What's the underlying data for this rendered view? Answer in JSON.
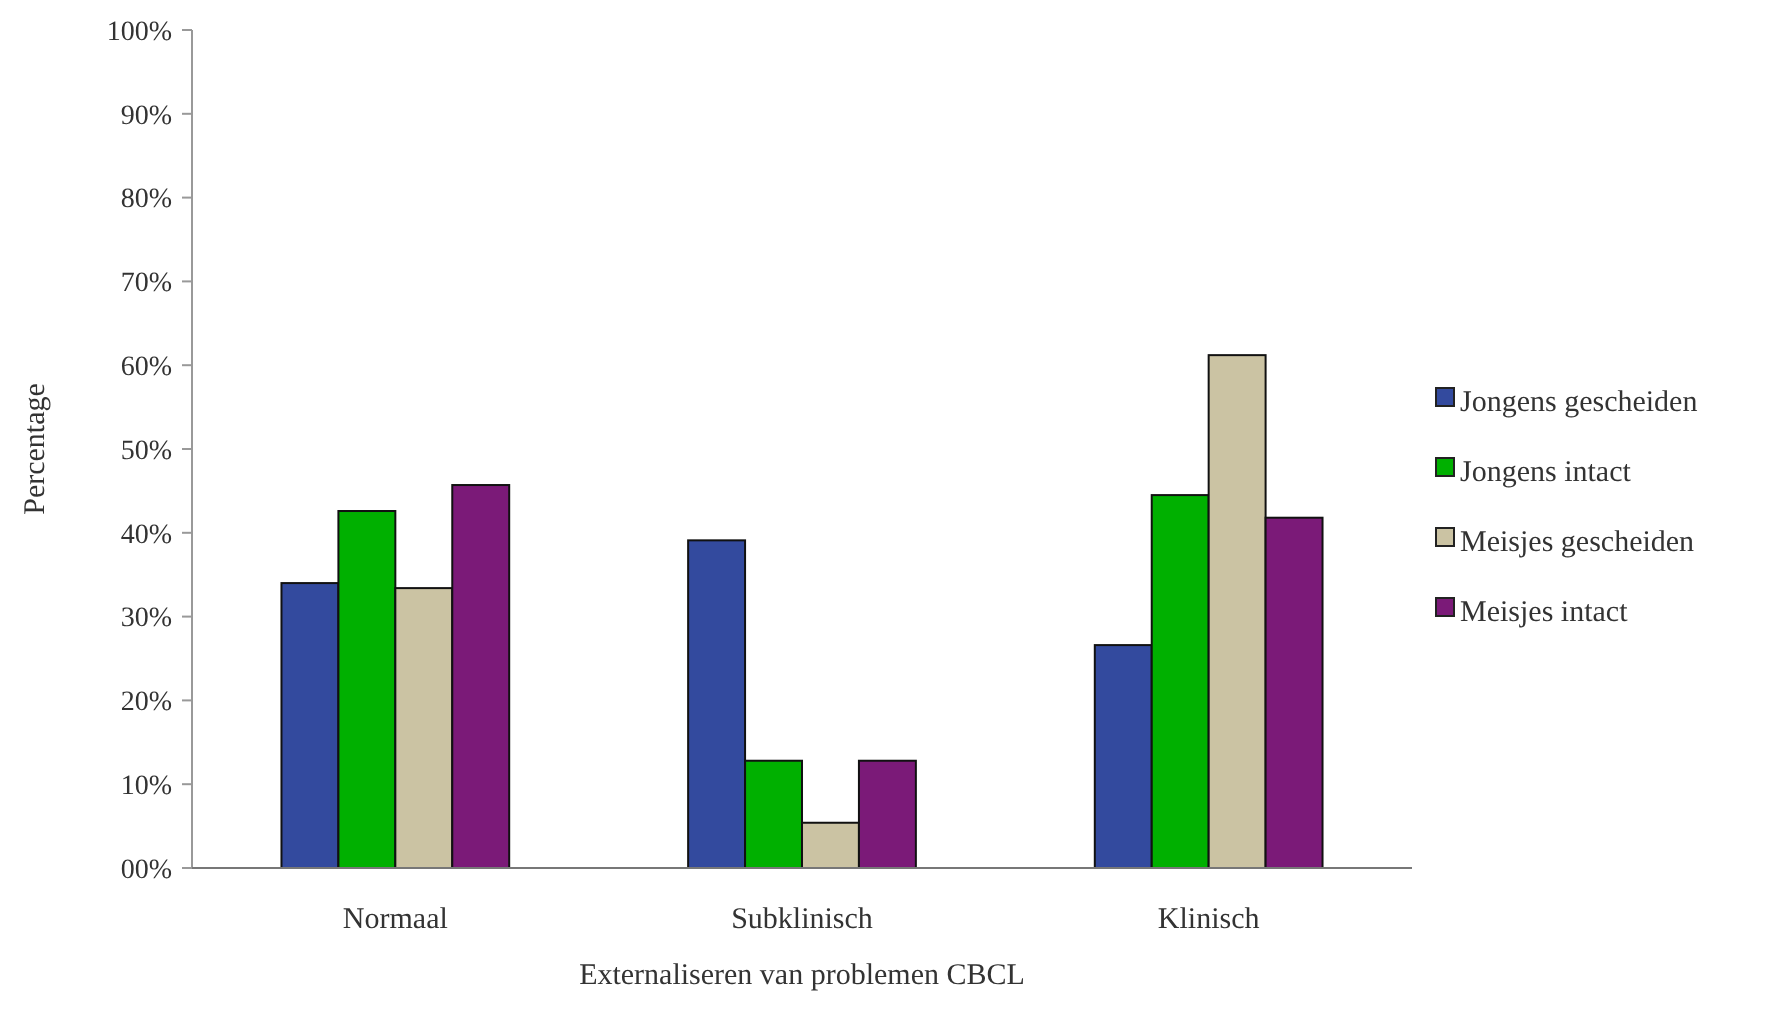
{
  "chart_data": {
    "type": "bar",
    "xlabel": "Externaliseren van problemen CBCL",
    "ylabel": "Percentage",
    "categories": [
      "Normaal",
      "Subklinisch",
      "Klinisch"
    ],
    "series": [
      {
        "name": "Jongens gescheiden",
        "color": "#334a9e",
        "values": [
          34,
          39.1,
          26.6
        ]
      },
      {
        "name": "Jongens intact",
        "color": "#00b000",
        "values": [
          42.6,
          12.8,
          44.5
        ]
      },
      {
        "name": "Meisjes gescheiden",
        "color": "#cbc3a3",
        "values": [
          33.4,
          5.4,
          61.2
        ]
      },
      {
        "name": "Meisjes intact",
        "color": "#7b1a78",
        "values": [
          45.7,
          12.8,
          41.8
        ]
      }
    ],
    "ylim": [
      0,
      100
    ],
    "yticks": [
      {
        "value": 0,
        "label": "00%"
      },
      {
        "value": 10,
        "label": "10%"
      },
      {
        "value": 20,
        "label": "20%"
      },
      {
        "value": 30,
        "label": "30%"
      },
      {
        "value": 40,
        "label": "40%"
      },
      {
        "value": 50,
        "label": "50%"
      },
      {
        "value": 60,
        "label": "60%"
      },
      {
        "value": 70,
        "label": "70%"
      },
      {
        "value": 80,
        "label": "80%"
      },
      {
        "value": 90,
        "label": "90%"
      },
      {
        "value": 100,
        "label": "100%"
      }
    ],
    "grid": false,
    "legend": "right"
  }
}
